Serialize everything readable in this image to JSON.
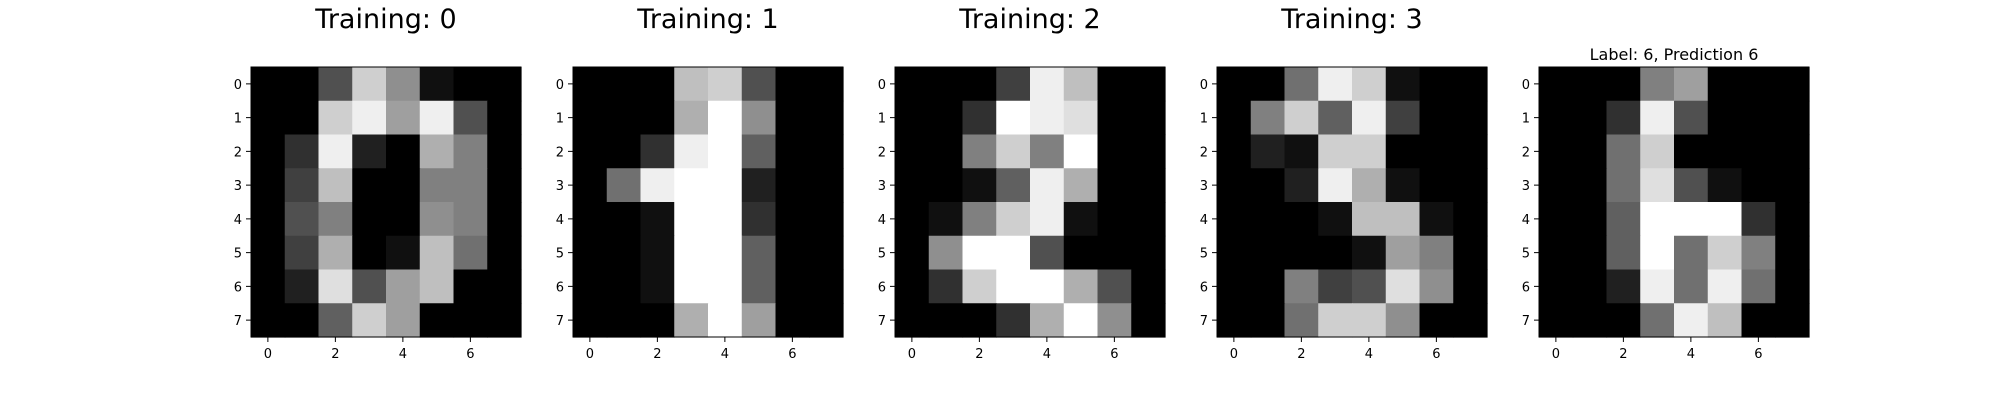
{
  "chart_data": [
    {
      "type": "heatmap",
      "title": "Training: 0",
      "colormap": "gray",
      "vmin": 0,
      "vmax": 16,
      "xticks": [
        "0",
        "2",
        "4",
        "6"
      ],
      "yticks": [
        "0",
        "1",
        "2",
        "3",
        "4",
        "5",
        "6",
        "7"
      ],
      "values": [
        [
          0,
          0,
          5,
          13,
          9,
          1,
          0,
          0
        ],
        [
          0,
          0,
          13,
          15,
          10,
          15,
          5,
          0
        ],
        [
          0,
          3,
          15,
          2,
          0,
          11,
          8,
          0
        ],
        [
          0,
          4,
          12,
          0,
          0,
          8,
          8,
          0
        ],
        [
          0,
          5,
          8,
          0,
          0,
          9,
          8,
          0
        ],
        [
          0,
          4,
          11,
          0,
          1,
          12,
          7,
          0
        ],
        [
          0,
          2,
          14,
          5,
          10,
          12,
          0,
          0
        ],
        [
          0,
          0,
          6,
          13,
          10,
          0,
          0,
          0
        ]
      ]
    },
    {
      "type": "heatmap",
      "title": "Training: 1",
      "colormap": "gray",
      "vmin": 0,
      "vmax": 16,
      "xticks": [
        "0",
        "2",
        "4",
        "6"
      ],
      "yticks": [
        "0",
        "1",
        "2",
        "3",
        "4",
        "5",
        "6",
        "7"
      ],
      "values": [
        [
          0,
          0,
          0,
          12,
          13,
          5,
          0,
          0
        ],
        [
          0,
          0,
          0,
          11,
          16,
          9,
          0,
          0
        ],
        [
          0,
          0,
          3,
          15,
          16,
          6,
          0,
          0
        ],
        [
          0,
          7,
          15,
          16,
          16,
          2,
          0,
          0
        ],
        [
          0,
          0,
          1,
          16,
          16,
          3,
          0,
          0
        ],
        [
          0,
          0,
          1,
          16,
          16,
          6,
          0,
          0
        ],
        [
          0,
          0,
          1,
          16,
          16,
          6,
          0,
          0
        ],
        [
          0,
          0,
          0,
          11,
          16,
          10,
          0,
          0
        ]
      ]
    },
    {
      "type": "heatmap",
      "title": "Training: 2",
      "colormap": "gray",
      "vmin": 0,
      "vmax": 16,
      "xticks": [
        "0",
        "2",
        "4",
        "6"
      ],
      "yticks": [
        "0",
        "1",
        "2",
        "3",
        "4",
        "5",
        "6",
        "7"
      ],
      "values": [
        [
          0,
          0,
          0,
          4,
          15,
          12,
          0,
          0
        ],
        [
          0,
          0,
          3,
          16,
          15,
          14,
          0,
          0
        ],
        [
          0,
          0,
          8,
          13,
          8,
          16,
          0,
          0
        ],
        [
          0,
          0,
          1,
          6,
          15,
          11,
          0,
          0
        ],
        [
          0,
          1,
          8,
          13,
          15,
          1,
          0,
          0
        ],
        [
          0,
          9,
          16,
          16,
          5,
          0,
          0,
          0
        ],
        [
          0,
          3,
          13,
          16,
          16,
          11,
          5,
          0
        ],
        [
          0,
          0,
          0,
          3,
          11,
          16,
          9,
          0
        ]
      ]
    },
    {
      "type": "heatmap",
      "title": "Training: 3",
      "colormap": "gray",
      "vmin": 0,
      "vmax": 16,
      "xticks": [
        "0",
        "2",
        "4",
        "6"
      ],
      "yticks": [
        "0",
        "1",
        "2",
        "3",
        "4",
        "5",
        "6",
        "7"
      ],
      "values": [
        [
          0,
          0,
          7,
          15,
          13,
          1,
          0,
          0
        ],
        [
          0,
          8,
          13,
          6,
          15,
          4,
          0,
          0
        ],
        [
          0,
          2,
          1,
          13,
          13,
          0,
          0,
          0
        ],
        [
          0,
          0,
          2,
          15,
          11,
          1,
          0,
          0
        ],
        [
          0,
          0,
          0,
          1,
          12,
          12,
          1,
          0
        ],
        [
          0,
          0,
          0,
          0,
          1,
          10,
          8,
          0
        ],
        [
          0,
          0,
          8,
          4,
          5,
          14,
          9,
          0
        ],
        [
          0,
          0,
          7,
          13,
          13,
          9,
          0,
          0
        ]
      ]
    },
    {
      "type": "heatmap",
      "title": "Label: 6, Prediction 6",
      "colormap": "gray",
      "vmin": 0,
      "vmax": 16,
      "xticks": [
        "0",
        "2",
        "4",
        "6"
      ],
      "yticks": [
        "0",
        "1",
        "2",
        "3",
        "4",
        "5",
        "6",
        "7"
      ],
      "values": [
        [
          0,
          0,
          0,
          8,
          10,
          0,
          0,
          0
        ],
        [
          0,
          0,
          3,
          15,
          5,
          0,
          0,
          0
        ],
        [
          0,
          0,
          7,
          13,
          0,
          0,
          0,
          0
        ],
        [
          0,
          0,
          7,
          14,
          5,
          1,
          0,
          0
        ],
        [
          0,
          0,
          6,
          16,
          16,
          16,
          3,
          0
        ],
        [
          0,
          0,
          6,
          16,
          7,
          13,
          8,
          0
        ],
        [
          0,
          0,
          2,
          15,
          7,
          15,
          7,
          0
        ],
        [
          0,
          0,
          0,
          7,
          15,
          12,
          0,
          0
        ]
      ]
    }
  ]
}
